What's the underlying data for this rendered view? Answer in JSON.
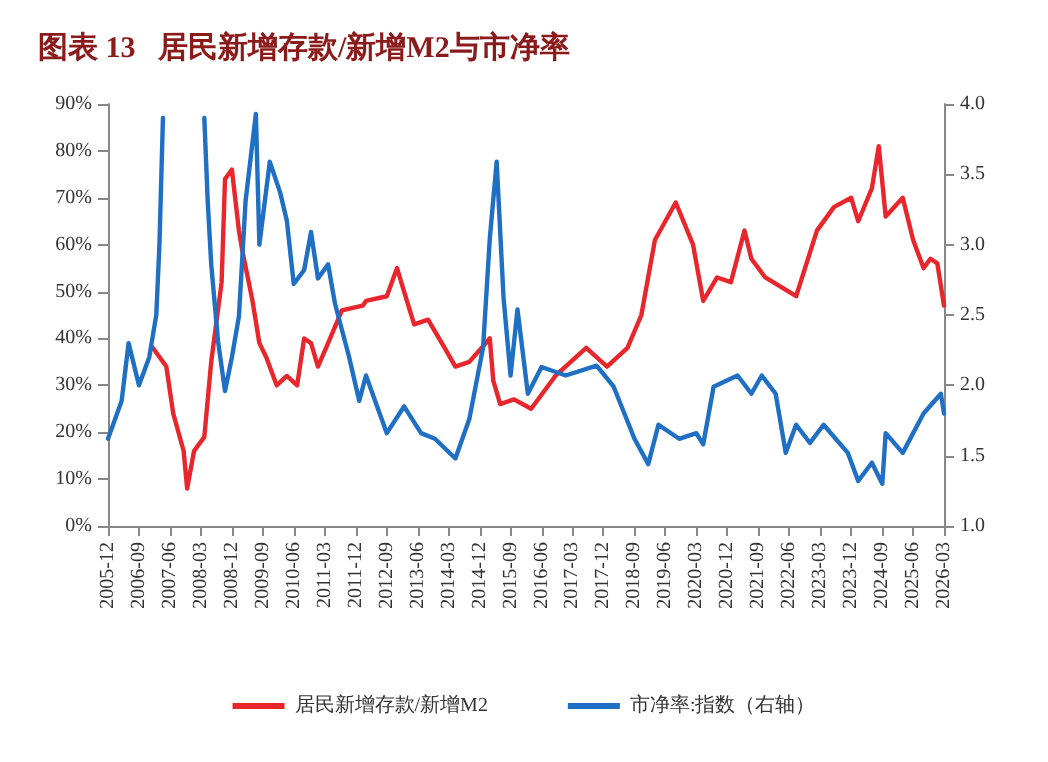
{
  "chart_data": {
    "type": "line",
    "title": "图表 13   居民新增存款/新增M2与市净率",
    "xlim": [
      "2005-12",
      "2026-03"
    ],
    "xticks": [
      "2005-12",
      "2006-09",
      "2007-06",
      "2008-03",
      "2008-12",
      "2009-09",
      "2010-06",
      "2011-03",
      "2011-12",
      "2012-09",
      "2013-06",
      "2014-03",
      "2014-12",
      "2015-09",
      "2016-06",
      "2017-03",
      "2017-12",
      "2018-09",
      "2019-06",
      "2020-03",
      "2020-12",
      "2021-09",
      "2022-06",
      "2023-03",
      "2023-12",
      "2024-09",
      "2025-06",
      "2026-03"
    ],
    "ylim": [
      0,
      90
    ],
    "yticks": [
      {
        "value": 0,
        "label": "0%"
      },
      {
        "value": 10,
        "label": "10%"
      },
      {
        "value": 20,
        "label": "20%"
      },
      {
        "value": 30,
        "label": "30%"
      },
      {
        "value": 40,
        "label": "40%"
      },
      {
        "value": 50,
        "label": "50%"
      },
      {
        "value": 60,
        "label": "60%"
      },
      {
        "value": 70,
        "label": "70%"
      },
      {
        "value": 80,
        "label": "80%"
      },
      {
        "value": 90,
        "label": "90%"
      }
    ],
    "y2lim": [
      1,
      4
    ],
    "y2ticks": [
      {
        "value": 1,
        "label": "1.0"
      },
      {
        "value": 1.5,
        "label": "1.5"
      },
      {
        "value": 2,
        "label": "2.0"
      },
      {
        "value": 2.5,
        "label": "2.5"
      },
      {
        "value": 3,
        "label": "3.0"
      },
      {
        "value": 3.5,
        "label": "3.5"
      },
      {
        "value": 4,
        "label": "4.0"
      }
    ],
    "grid": false,
    "legend": "bottom",
    "marker": "none",
    "line_style": "solid",
    "series": [
      {
        "name": "居民新增存款/新增M2",
        "color": "#e8262b",
        "x": [
          "2007-01",
          "2007-05",
          "2007-07",
          "2007-10",
          "2007-11",
          "2008-01",
          "2008-04",
          "2008-06",
          "2008-09",
          "2008-10",
          "2008-12",
          "2009-02",
          "2009-03",
          "2009-06",
          "2009-08",
          "2009-10",
          "2010-01",
          "2010-04",
          "2010-07",
          "2010-09",
          "2010-11",
          "2011-01",
          "2011-04",
          "2011-08",
          "2012-02",
          "2012-03",
          "2012-09",
          "2012-12",
          "2013-02",
          "2013-05",
          "2013-09",
          "2014-01",
          "2014-05",
          "2014-09",
          "2015-03",
          "2015-04",
          "2015-06",
          "2015-10",
          "2016-03",
          "2016-10",
          "2017-07",
          "2018-01",
          "2018-07",
          "2018-11",
          "2019-03",
          "2019-09",
          "2020-02",
          "2020-05",
          "2020-09",
          "2021-01",
          "2021-05",
          "2021-07",
          "2021-11",
          "2022-08",
          "2023-02",
          "2023-07",
          "2023-12",
          "2024-02",
          "2024-06",
          "2024-08",
          "2024-10",
          "2025-03",
          "2025-06",
          "2025-09",
          "2025-11",
          "2026-01",
          "2026-03"
        ],
        "values": [
          38,
          34,
          24,
          16,
          8,
          16,
          19,
          35,
          52,
          74,
          76,
          63,
          59,
          48,
          39,
          36,
          30,
          32,
          30,
          40,
          39,
          34,
          39,
          46,
          47,
          48,
          49,
          55,
          50,
          43,
          44,
          39,
          34,
          35,
          40,
          31,
          26,
          27,
          25,
          32,
          38,
          34,
          38,
          45,
          61,
          69,
          60,
          48,
          53,
          52,
          63,
          57,
          53,
          49,
          63,
          68,
          70,
          65,
          72,
          81,
          66,
          70,
          61,
          55,
          57,
          56,
          47
        ]
      },
      {
        "name": "市净率:指数（右轴）",
        "color": "#1f6fc5",
        "axis": "y2",
        "x": [
          "2005-12",
          "2006-04",
          "2006-06",
          "2006-09",
          "2006-12",
          "2007-02",
          "2007-03",
          "2007-04",
          "2007-08",
          "2008-03",
          "2008-04",
          "2008-05",
          "2008-06",
          "2008-08",
          "2008-10",
          "2008-12",
          "2009-02",
          "2009-04",
          "2009-07",
          "2009-08",
          "2009-11",
          "2010-02",
          "2010-04",
          "2010-06",
          "2010-09",
          "2010-11",
          "2011-01",
          "2011-04",
          "2011-06",
          "2011-10",
          "2012-01",
          "2012-03",
          "2012-09",
          "2013-02",
          "2013-07",
          "2013-11",
          "2014-05",
          "2014-09",
          "2015-01",
          "2015-03",
          "2015-05",
          "2015-07",
          "2015-09",
          "2015-11",
          "2016-02",
          "2016-06",
          "2017-01",
          "2017-10",
          "2018-03",
          "2018-09",
          "2019-01",
          "2019-04",
          "2019-10",
          "2020-03",
          "2020-05",
          "2020-08",
          "2021-03",
          "2021-07",
          "2021-10",
          "2022-02",
          "2022-05",
          "2022-08",
          "2022-12",
          "2023-04",
          "2023-11",
          "2024-02",
          "2024-06",
          "2024-09",
          "2024-10",
          "2025-03",
          "2025-09",
          "2026-02",
          "2026-03"
        ],
        "values": [
          1.62,
          1.89,
          2.3,
          2.0,
          2.2,
          2.5,
          3.0,
          3.9,
          null,
          null,
          3.9,
          3.31,
          2.86,
          2.31,
          1.96,
          2.2,
          2.49,
          3.31,
          3.93,
          3.0,
          3.59,
          3.37,
          3.17,
          2.72,
          2.82,
          3.09,
          2.76,
          2.86,
          2.58,
          2.21,
          1.89,
          2.07,
          1.66,
          1.85,
          1.66,
          1.62,
          1.48,
          1.76,
          2.27,
          3.04,
          3.59,
          2.62,
          2.07,
          2.54,
          1.94,
          2.13,
          2.07,
          2.14,
          1.99,
          1.62,
          1.44,
          1.72,
          1.62,
          1.66,
          1.58,
          1.99,
          2.07,
          1.94,
          2.07,
          1.94,
          1.52,
          1.72,
          1.59,
          1.72,
          1.52,
          1.32,
          1.45,
          1.3,
          1.66,
          1.52,
          1.8,
          1.94,
          1.8
        ]
      }
    ]
  }
}
